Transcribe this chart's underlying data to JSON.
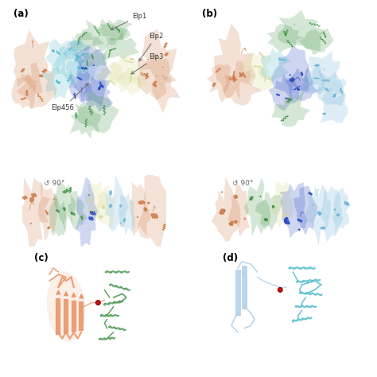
{
  "background_color": "#ffffff",
  "panel_labels": [
    "(a)",
    "(b)",
    "(c)",
    "(d)"
  ],
  "colors": {
    "green_dark": "#3d9142",
    "orange": "#cc7744",
    "blue_dark": "#2244bb",
    "blue_light": "#6ab0d4",
    "blue_pale": "#b0cfe8",
    "yellow": "#d4d888",
    "teal": "#4ab8c8",
    "red": "#cc1111",
    "salmon": "#e8966a",
    "white": "#ffffff",
    "gray_arrow": "#777777"
  },
  "figure_width": 4.74,
  "figure_height": 4.74,
  "dpi": 100
}
